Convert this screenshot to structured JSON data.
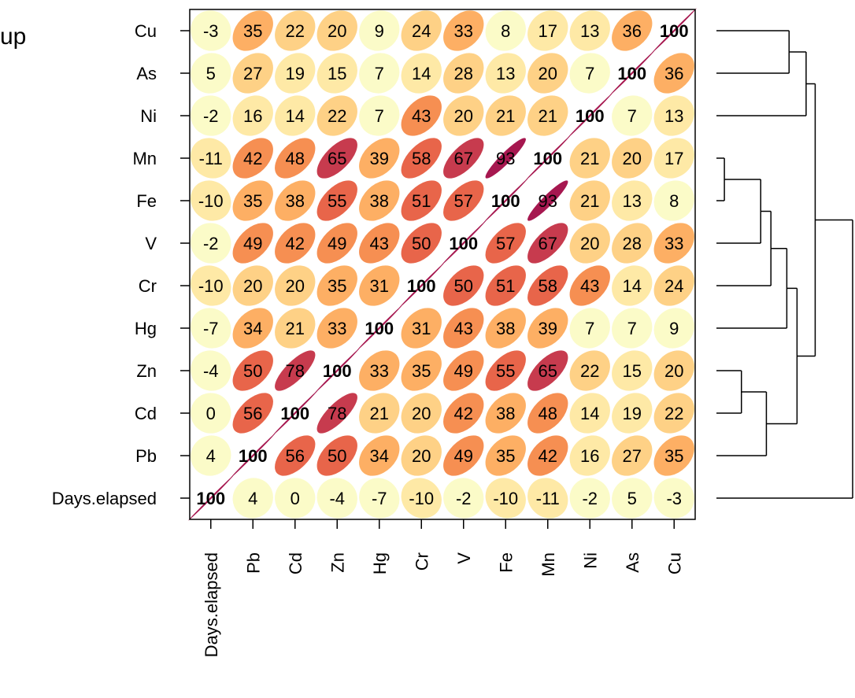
{
  "corner_text": "up",
  "colors": {
    "levels": [
      "#fbfbc8",
      "#fee9a6",
      "#fed186",
      "#fdaf64",
      "#f68f52",
      "#e8654a",
      "#c73b4e",
      "#a6174f"
    ],
    "thresholds": [
      10,
      20,
      30,
      40,
      50,
      60,
      85
    ]
  },
  "chart_data": {
    "type": "heatmap",
    "subtype": "ellipse correlation matrix with dendrogram",
    "title": "",
    "row_labels": [
      "Cu",
      "As",
      "Ni",
      "Mn",
      "Fe",
      "V",
      "Cr",
      "Hg",
      "Zn",
      "Cd",
      "Pb",
      "Days.elapsed"
    ],
    "col_labels": [
      "Days.elapsed",
      "Pb",
      "Cd",
      "Zn",
      "Hg",
      "Cr",
      "V",
      "Fe",
      "Mn",
      "Ni",
      "As",
      "Cu"
    ],
    "values": [
      [
        -3,
        35,
        22,
        20,
        9,
        24,
        33,
        8,
        17,
        13,
        36,
        100
      ],
      [
        5,
        27,
        19,
        15,
        7,
        14,
        28,
        13,
        20,
        7,
        100,
        36
      ],
      [
        -2,
        16,
        14,
        22,
        7,
        43,
        20,
        21,
        21,
        100,
        7,
        13
      ],
      [
        -11,
        42,
        48,
        65,
        39,
        58,
        67,
        93,
        100,
        21,
        20,
        17
      ],
      [
        -10,
        35,
        38,
        55,
        38,
        51,
        57,
        100,
        93,
        21,
        13,
        8
      ],
      [
        -2,
        49,
        42,
        49,
        43,
        50,
        100,
        57,
        67,
        20,
        28,
        33
      ],
      [
        -10,
        20,
        20,
        35,
        31,
        100,
        50,
        51,
        58,
        43,
        14,
        24
      ],
      [
        -7,
        34,
        21,
        33,
        100,
        31,
        43,
        38,
        39,
        7,
        7,
        9
      ],
      [
        -4,
        50,
        78,
        100,
        33,
        35,
        49,
        55,
        65,
        22,
        15,
        20
      ],
      [
        0,
        56,
        100,
        78,
        21,
        20,
        42,
        38,
        48,
        14,
        19,
        22
      ],
      [
        4,
        100,
        56,
        50,
        34,
        20,
        49,
        35,
        42,
        16,
        27,
        35
      ],
      [
        100,
        4,
        0,
        -4,
        -7,
        -10,
        -2,
        -10,
        -11,
        -2,
        5,
        -3
      ]
    ],
    "dendrogram": {
      "leaf_order": [
        "Cu",
        "As",
        "Ni",
        "Mn",
        "Fe",
        "V",
        "Cr",
        "Hg",
        "Zn",
        "Cd",
        "Pb",
        "Days.elapsed"
      ],
      "merges": [
        {
          "a": "Cu",
          "b": "As",
          "height": 0.64
        },
        {
          "a": "Cu+As",
          "b": "Ni",
          "height": 0.79
        },
        {
          "a": "Mn",
          "b": "Fe",
          "height": 0.07
        },
        {
          "a": "Mn+Fe",
          "b": "V",
          "height": 0.39
        },
        {
          "a": "Mn+Fe+V",
          "b": "Cr",
          "height": 0.48
        },
        {
          "a": "Mn+Fe+V+Cr",
          "b": "Hg",
          "height": 0.62
        },
        {
          "a": "Zn",
          "b": "Cd",
          "height": 0.22
        },
        {
          "a": "Zn+Cd",
          "b": "Pb",
          "height": 0.44
        },
        {
          "a": "Mn..Hg",
          "b": "Zn+Cd+Pb",
          "height": 0.71
        },
        {
          "a": "Cu+As+Ni",
          "b": "Mn..Pb",
          "height": 0.87
        },
        {
          "a": "all",
          "b": "Days.elapsed",
          "height": 1.2
        }
      ]
    }
  }
}
